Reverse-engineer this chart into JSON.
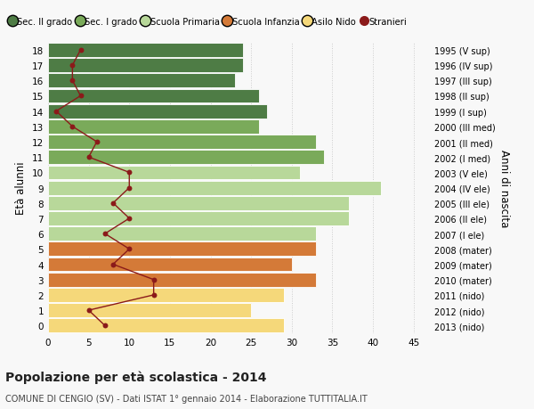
{
  "ages": [
    18,
    17,
    16,
    15,
    14,
    13,
    12,
    11,
    10,
    9,
    8,
    7,
    6,
    5,
    4,
    3,
    2,
    1,
    0
  ],
  "years": [
    "1995 (V sup)",
    "1996 (IV sup)",
    "1997 (III sup)",
    "1998 (II sup)",
    "1999 (I sup)",
    "2000 (III med)",
    "2001 (II med)",
    "2002 (I med)",
    "2003 (V ele)",
    "2004 (IV ele)",
    "2005 (III ele)",
    "2006 (II ele)",
    "2007 (I ele)",
    "2008 (mater)",
    "2009 (mater)",
    "2010 (mater)",
    "2011 (nido)",
    "2012 (nido)",
    "2013 (nido)"
  ],
  "bar_values": [
    24,
    24,
    23,
    26,
    27,
    26,
    33,
    34,
    31,
    41,
    37,
    37,
    33,
    33,
    30,
    33,
    29,
    25,
    29
  ],
  "bar_colors": [
    "#4e7c45",
    "#4e7c45",
    "#4e7c45",
    "#4e7c45",
    "#4e7c45",
    "#7aaa5a",
    "#7aaa5a",
    "#7aaa5a",
    "#b8d89a",
    "#b8d89a",
    "#b8d89a",
    "#b8d89a",
    "#b8d89a",
    "#d47a38",
    "#d47a38",
    "#d47a38",
    "#f5d87a",
    "#f5d87a",
    "#f5d87a"
  ],
  "stranieri_values": [
    4,
    3,
    3,
    4,
    1,
    3,
    6,
    5,
    10,
    10,
    8,
    10,
    7,
    10,
    8,
    13,
    13,
    5,
    7
  ],
  "title_bold": "Popolazione per età scolastica - 2014",
  "subtitle": "COMUNE DI CENGIO (SV) - Dati ISTAT 1° gennaio 2014 - Elaborazione TUTTITALIA.IT",
  "ylabel": "Età alunni",
  "ylabel2": "Anni di nascita",
  "xlim": [
    0,
    47
  ],
  "ylim": [
    -0.5,
    18.5
  ],
  "xticks": [
    0,
    5,
    10,
    15,
    20,
    25,
    30,
    35,
    40,
    45
  ],
  "legend_labels": [
    "Sec. II grado",
    "Sec. I grado",
    "Scuola Primaria",
    "Scuola Infanzia",
    "Asilo Nido",
    "Stranieri"
  ],
  "legend_colors": [
    "#4e7c45",
    "#7aaa5a",
    "#b8d89a",
    "#d47a38",
    "#f5d87a",
    "#8b1a1a"
  ],
  "bg_color": "#f8f8f8",
  "grid_color": "#cccccc",
  "bar_height": 0.92
}
